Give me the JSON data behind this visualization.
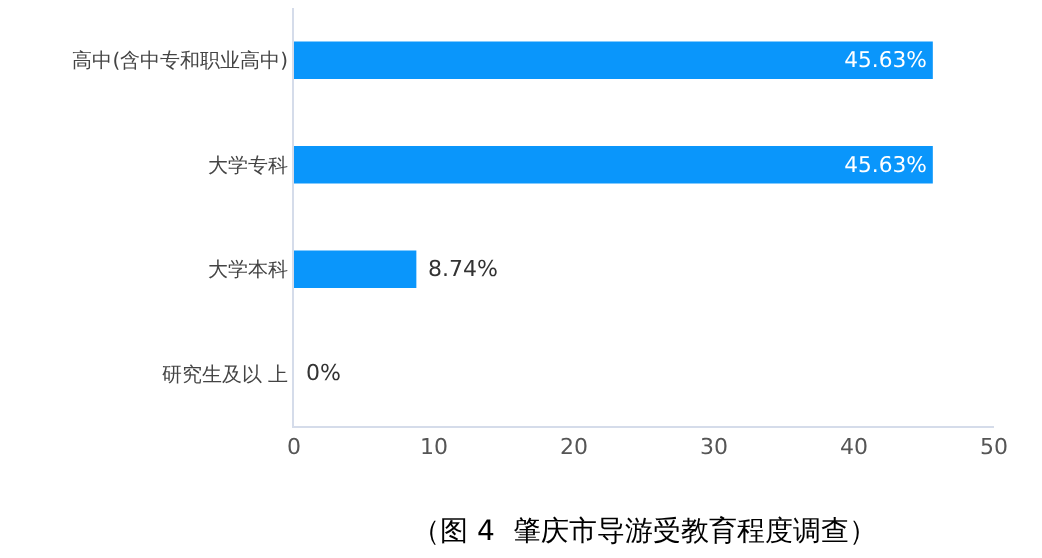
{
  "chart_data": {
    "type": "bar",
    "orientation": "horizontal",
    "categories": [
      "高中(含中专和职业高中)",
      "大学专科",
      "大学本科",
      "研究生及以 上"
    ],
    "values": [
      45.63,
      45.63,
      8.74,
      0
    ],
    "value_labels": [
      "45.63%",
      "45.63%",
      "8.74%",
      "0%"
    ],
    "color": "#0a96fb",
    "xlim": [
      0,
      50
    ],
    "xticks": [
      0,
      10,
      20,
      30,
      40,
      50
    ],
    "grid": false,
    "legend": false,
    "annotations": [
      "（图 4  肇庆市导游受教育程度调查）"
    ]
  }
}
